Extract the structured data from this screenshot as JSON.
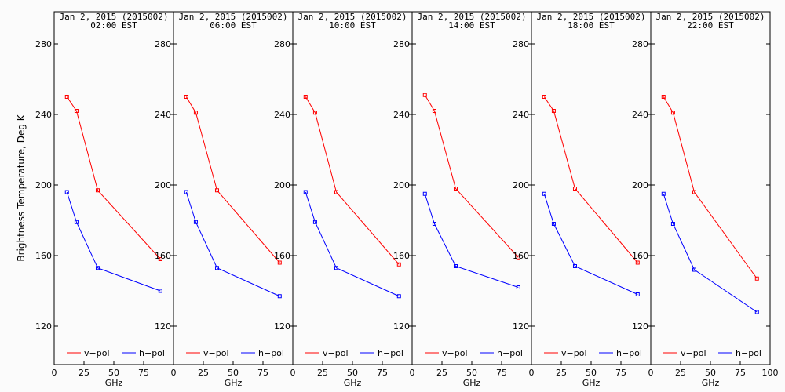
{
  "figure": {
    "ylabel": "Brightness Temperature, Deg K",
    "xlabel": "GHz"
  },
  "chart_data": [
    {
      "type": "line",
      "title": "Jan  2, 2015 (2015002)",
      "subtitle": "02:00 EST",
      "xlabel": "GHz",
      "ylabel": "Brightness Temperature, Deg K",
      "x": [
        10.7,
        18.7,
        36.5,
        89.0
      ],
      "xlim": [
        0,
        100
      ],
      "ylim": [
        100,
        295
      ],
      "yticks": [
        120,
        160,
        200,
        240,
        280
      ],
      "xticks": [
        0,
        25,
        50,
        75
      ],
      "legend": "bottom",
      "series": [
        {
          "name": "v−pol",
          "color": "#ff0000",
          "values": [
            250,
            242,
            197,
            158
          ]
        },
        {
          "name": "h−pol",
          "color": "#0000ff",
          "values": [
            196,
            179,
            153,
            140
          ]
        }
      ]
    },
    {
      "type": "line",
      "title": "Jan  2, 2015 (2015002)",
      "subtitle": "06:00 EST",
      "xlabel": "GHz",
      "x": [
        10.7,
        18.7,
        36.5,
        89.0
      ],
      "xlim": [
        0,
        100
      ],
      "ylim": [
        100,
        295
      ],
      "yticks": [
        120,
        160,
        200,
        240,
        280
      ],
      "xticks": [
        0,
        25,
        50,
        75
      ],
      "legend": "bottom",
      "series": [
        {
          "name": "v−pol",
          "color": "#ff0000",
          "values": [
            250,
            241,
            197,
            156
          ]
        },
        {
          "name": "h−pol",
          "color": "#0000ff",
          "values": [
            196,
            179,
            153,
            137
          ]
        }
      ]
    },
    {
      "type": "line",
      "title": "Jan  2, 2015 (2015002)",
      "subtitle": "10:00 EST",
      "xlabel": "GHz",
      "x": [
        10.7,
        18.7,
        36.5,
        89.0
      ],
      "xlim": [
        0,
        100
      ],
      "ylim": [
        100,
        295
      ],
      "yticks": [
        120,
        160,
        200,
        240,
        280
      ],
      "xticks": [
        0,
        25,
        50,
        75
      ],
      "legend": "bottom",
      "series": [
        {
          "name": "v−pol",
          "color": "#ff0000",
          "values": [
            250,
            241,
            196,
            155
          ]
        },
        {
          "name": "h−pol",
          "color": "#0000ff",
          "values": [
            196,
            179,
            153,
            137
          ]
        }
      ]
    },
    {
      "type": "line",
      "title": "Jan  2, 2015 (2015002)",
      "subtitle": "14:00 EST",
      "xlabel": "GHz",
      "x": [
        10.7,
        18.7,
        36.5,
        89.0
      ],
      "xlim": [
        0,
        100
      ],
      "ylim": [
        100,
        295
      ],
      "yticks": [
        120,
        160,
        200,
        240,
        280
      ],
      "xticks": [
        0,
        25,
        50,
        75
      ],
      "legend": "bottom",
      "series": [
        {
          "name": "v−pol",
          "color": "#ff0000",
          "values": [
            251,
            242,
            198,
            159
          ]
        },
        {
          "name": "h−pol",
          "color": "#0000ff",
          "values": [
            195,
            178,
            154,
            142
          ]
        }
      ]
    },
    {
      "type": "line",
      "title": "Jan  2, 2015 (2015002)",
      "subtitle": "18:00 EST",
      "xlabel": "GHz",
      "x": [
        10.7,
        18.7,
        36.5,
        89.0
      ],
      "xlim": [
        0,
        100
      ],
      "ylim": [
        100,
        295
      ],
      "yticks": [
        120,
        160,
        200,
        240,
        280
      ],
      "xticks": [
        0,
        25,
        50,
        75
      ],
      "legend": "bottom",
      "series": [
        {
          "name": "v−pol",
          "color": "#ff0000",
          "values": [
            250,
            242,
            198,
            156
          ]
        },
        {
          "name": "h−pol",
          "color": "#0000ff",
          "values": [
            195,
            178,
            154,
            138
          ]
        }
      ]
    },
    {
      "type": "line",
      "title": "Jan  2, 2015 (2015002)",
      "subtitle": "22:00 EST",
      "xlabel": "GHz",
      "x": [
        10.7,
        18.7,
        36.5,
        89.0
      ],
      "xlim": [
        0,
        100
      ],
      "ylim": [
        100,
        295
      ],
      "yticks": [
        120,
        160,
        200,
        240,
        280
      ],
      "xticks": [
        0,
        25,
        50,
        75,
        100
      ],
      "legend": "bottom",
      "series": [
        {
          "name": "v−pol",
          "color": "#ff0000",
          "values": [
            250,
            241,
            196,
            147
          ]
        },
        {
          "name": "h−pol",
          "color": "#0000ff",
          "values": [
            195,
            178,
            152,
            128
          ]
        }
      ]
    }
  ]
}
